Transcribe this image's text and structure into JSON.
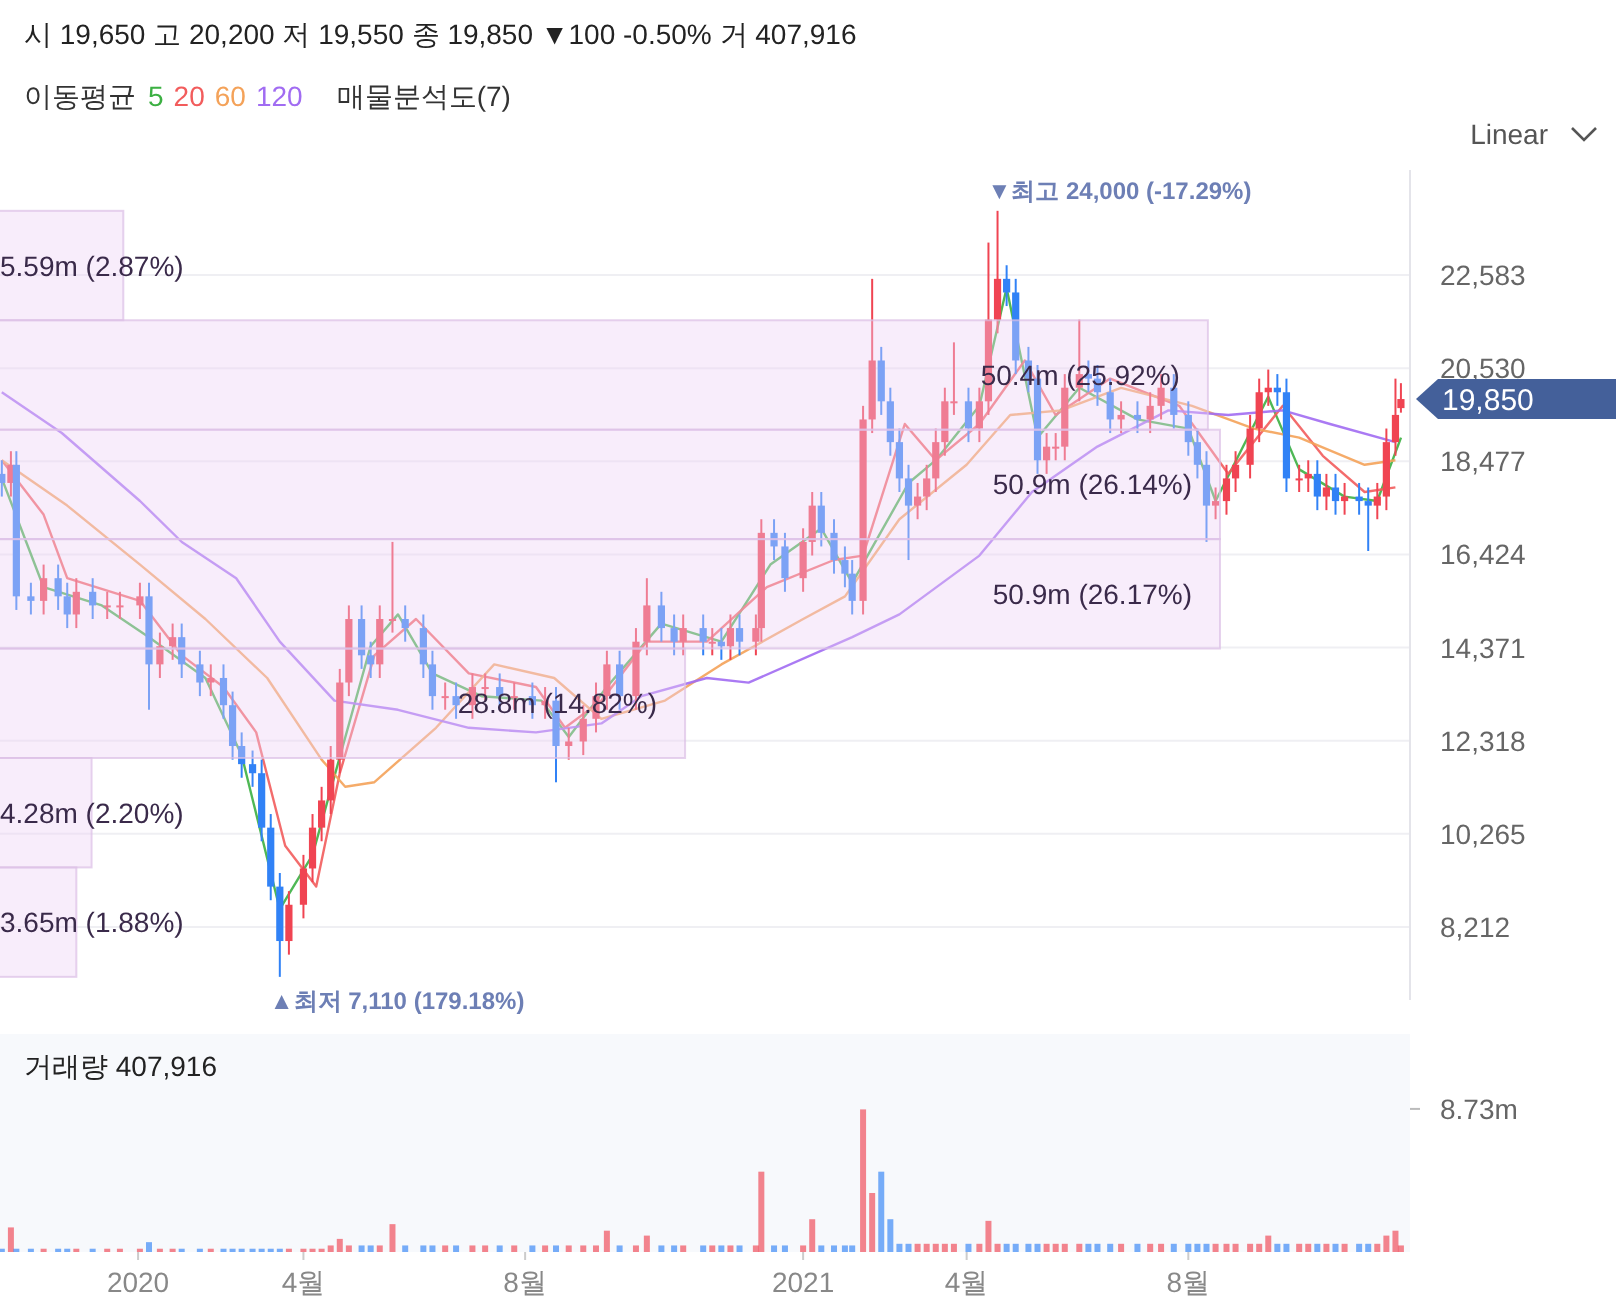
{
  "chart_data": [
    {
      "type": "candlestick",
      "subtitle": "시 19,650 고 20,200 저 19,550 종 19,850 ▼100 -0.50% 거 407,916",
      "legend_title": "이동평균",
      "legend": "top left",
      "grid": "y",
      "tick_labels": "y",
      "xlim": [
        "2019-10-17",
        "2021-12-01"
      ],
      "ylim": [
        6600,
        24900
      ],
      "yticks": [
        {
          "value": 8212,
          "label": "8,212"
        },
        {
          "value": 10265,
          "label": "10,265"
        },
        {
          "value": 12318,
          "label": "12,318"
        },
        {
          "value": 14371,
          "label": "14,371"
        },
        {
          "value": 16424,
          "label": "16,424"
        },
        {
          "value": 18477,
          "label": "18,477"
        },
        {
          "value": 20530,
          "label": "20,530"
        },
        {
          "value": 22583,
          "label": "22,583"
        }
      ],
      "x": [
        "2019-10-18",
        "2019-10-23",
        "2019-10-26",
        "2019-11-03",
        "2019-11-10",
        "2019-11-18",
        "2019-11-23",
        "2019-11-28",
        "2019-12-07",
        "2019-12-15",
        "2019-12-22",
        "2020-01-02",
        "2020-01-07",
        "2020-01-13",
        "2020-01-20",
        "2020-01-25",
        "2020-02-04",
        "2020-02-10",
        "2020-02-17",
        "2020-02-22",
        "2020-02-27",
        "2020-03-04",
        "2020-03-09",
        "2020-03-14",
        "2020-03-19",
        "2020-03-24",
        "2020-04-01",
        "2020-04-06",
        "2020-04-11",
        "2020-04-16",
        "2020-04-21",
        "2020-04-26",
        "2020-05-03",
        "2020-05-08",
        "2020-05-13",
        "2020-05-20",
        "2020-05-27",
        "2020-06-06",
        "2020-06-11",
        "2020-06-18",
        "2020-06-24",
        "2020-07-03",
        "2020-07-10",
        "2020-07-18",
        "2020-07-26",
        "2020-08-05",
        "2020-08-12",
        "2020-08-18",
        "2020-08-25",
        "2020-09-02",
        "2020-09-09",
        "2020-09-15",
        "2020-09-22",
        "2020-10-01",
        "2020-10-07",
        "2020-10-15",
        "2020-10-22",
        "2020-10-27",
        "2020-11-07",
        "2020-11-12",
        "2020-11-17",
        "2020-11-22",
        "2020-11-27",
        "2020-12-06",
        "2020-12-09",
        "2020-12-16",
        "2020-12-22",
        "2021-01-01",
        "2021-01-06",
        "2021-01-11",
        "2021-01-18",
        "2021-01-24",
        "2021-01-28",
        "2021-02-03",
        "2021-02-08",
        "2021-02-13",
        "2021-02-18",
        "2021-02-23",
        "2021-02-28",
        "2021-03-05",
        "2021-03-10",
        "2021-03-15",
        "2021-03-20",
        "2021-03-25",
        "2021-04-02",
        "2021-04-08",
        "2021-04-13",
        "2021-04-18",
        "2021-04-23",
        "2021-04-28",
        "2021-05-05",
        "2021-05-10",
        "2021-05-15",
        "2021-05-20",
        "2021-05-25",
        "2021-06-02",
        "2021-06-07",
        "2021-06-12",
        "2021-06-19",
        "2021-06-25",
        "2021-07-04",
        "2021-07-11",
        "2021-07-17",
        "2021-07-24",
        "2021-08-01",
        "2021-08-06",
        "2021-08-11",
        "2021-08-16",
        "2021-08-22",
        "2021-08-27",
        "2021-09-04",
        "2021-09-09",
        "2021-09-14",
        "2021-09-19",
        "2021-09-24",
        "2021-10-01",
        "2021-10-06",
        "2021-10-11",
        "2021-10-16",
        "2021-10-21",
        "2021-10-26",
        "2021-11-03",
        "2021-11-08",
        "2021-11-13",
        "2021-11-18",
        "2021-11-23",
        "2021-11-26"
      ],
      "ohlc": [
        [
          18200,
          18500,
          17700,
          18000
        ],
        [
          18000,
          18700,
          17700,
          18400
        ],
        [
          18400,
          18700,
          15200,
          15500
        ],
        [
          15500,
          15800,
          15100,
          15400
        ],
        [
          15400,
          16200,
          15100,
          15900
        ],
        [
          15900,
          16200,
          15200,
          15500
        ],
        [
          15500,
          15800,
          14800,
          15100
        ],
        [
          15100,
          15900,
          14800,
          15600
        ],
        [
          15600,
          15900,
          15000,
          15300
        ],
        [
          15300,
          15600,
          15000,
          15300
        ],
        [
          15300,
          15600,
          15000,
          15300
        ],
        [
          15300,
          15800,
          15000,
          15500
        ],
        [
          15500,
          15800,
          13000,
          14000
        ],
        [
          14000,
          14700,
          13700,
          14400
        ],
        [
          14400,
          14900,
          14100,
          14600
        ],
        [
          14600,
          14900,
          13700,
          14000
        ],
        [
          14000,
          14300,
          13300,
          13600
        ],
        [
          13600,
          14000,
          13300,
          13700
        ],
        [
          13700,
          14000,
          12800,
          13100
        ],
        [
          13100,
          13400,
          11900,
          12200
        ],
        [
          12200,
          12500,
          11500,
          11800
        ],
        [
          11800,
          12100,
          11300,
          11600
        ],
        [
          11600,
          11900,
          10100,
          10400
        ],
        [
          10400,
          10700,
          8800,
          9100
        ],
        [
          9100,
          9400,
          7110,
          7900
        ],
        [
          7900,
          9000,
          7600,
          8700
        ],
        [
          8700,
          9800,
          8400,
          9500
        ],
        [
          9500,
          10700,
          9200,
          10400
        ],
        [
          10400,
          11300,
          10100,
          11000
        ],
        [
          11000,
          12200,
          10700,
          11900
        ],
        [
          11900,
          13900,
          11600,
          13600
        ],
        [
          13600,
          15300,
          13300,
          15000
        ],
        [
          15000,
          15300,
          13900,
          14200
        ],
        [
          14200,
          14500,
          13700,
          14000
        ],
        [
          14000,
          15300,
          13700,
          15000
        ],
        [
          15000,
          16700,
          14700,
          15000
        ],
        [
          15000,
          15300,
          14500,
          14800
        ],
        [
          14800,
          15100,
          13700,
          14000
        ],
        [
          14000,
          14300,
          13000,
          13300
        ],
        [
          13300,
          13600,
          13000,
          13300
        ],
        [
          13300,
          13600,
          12800,
          13100
        ],
        [
          13100,
          13800,
          12800,
          13500
        ],
        [
          13500,
          13800,
          13200,
          13500
        ],
        [
          13500,
          13800,
          13000,
          13300
        ],
        [
          13300,
          13600,
          13000,
          13300
        ],
        [
          13300,
          13600,
          12800,
          13100
        ],
        [
          13100,
          13500,
          12800,
          13200
        ],
        [
          13200,
          13500,
          11400,
          12200
        ],
        [
          12200,
          12600,
          11900,
          12300
        ],
        [
          12300,
          13100,
          12000,
          12800
        ],
        [
          12800,
          13600,
          12500,
          13300
        ],
        [
          13300,
          14300,
          13000,
          14000
        ],
        [
          14000,
          14300,
          13000,
          13300
        ],
        [
          13300,
          14800,
          13000,
          14500
        ],
        [
          14500,
          15900,
          14200,
          15300
        ],
        [
          15300,
          15600,
          14500,
          14800
        ],
        [
          14800,
          15100,
          14200,
          14500
        ],
        [
          14500,
          15100,
          14200,
          14800
        ],
        [
          14800,
          15100,
          14200,
          14500
        ],
        [
          14500,
          14800,
          14200,
          14500
        ],
        [
          14500,
          14800,
          14100,
          14400
        ],
        [
          14400,
          15100,
          14100,
          14800
        ],
        [
          14800,
          15100,
          14200,
          14500
        ],
        [
          14500,
          15100,
          14200,
          14800
        ],
        [
          14800,
          17200,
          14500,
          16900
        ],
        [
          16900,
          17200,
          16300,
          16600
        ],
        [
          16600,
          16900,
          15600,
          15900
        ],
        [
          15900,
          17000,
          15600,
          16700
        ],
        [
          16700,
          17800,
          16400,
          17500
        ],
        [
          17500,
          17800,
          16600,
          16900
        ],
        [
          16900,
          17200,
          16000,
          16300
        ],
        [
          16300,
          16600,
          15700,
          16000
        ],
        [
          16000,
          16300,
          15100,
          15400
        ],
        [
          15400,
          19700,
          15100,
          19400
        ],
        [
          19400,
          22500,
          19100,
          20700
        ],
        [
          20700,
          21000,
          19500,
          19800
        ],
        [
          19800,
          20100,
          18600,
          18900
        ],
        [
          18900,
          19200,
          17800,
          18100
        ],
        [
          18100,
          18400,
          16300,
          17500
        ],
        [
          17500,
          18000,
          17200,
          17700
        ],
        [
          17700,
          18400,
          17400,
          18100
        ],
        [
          18100,
          19200,
          17800,
          18900
        ],
        [
          18900,
          20100,
          18600,
          19800
        ],
        [
          19800,
          21100,
          19500,
          19800
        ],
        [
          19800,
          20100,
          18900,
          19200
        ],
        [
          19200,
          20100,
          18900,
          19800
        ],
        [
          19800,
          23300,
          19500,
          21600
        ],
        [
          21600,
          24000,
          21300,
          22500
        ],
        [
          22500,
          22800,
          21900,
          22200
        ],
        [
          22200,
          22500,
          20400,
          20700
        ],
        [
          20700,
          21000,
          20000,
          20300
        ],
        [
          20300,
          20600,
          18200,
          18500
        ],
        [
          18500,
          19100,
          18200,
          18800
        ],
        [
          18800,
          19100,
          18500,
          18800
        ],
        [
          18800,
          20400,
          18500,
          20100
        ],
        [
          20100,
          21600,
          19800,
          20400
        ],
        [
          20400,
          20700,
          20000,
          20300
        ],
        [
          20300,
          20600,
          19700,
          20000
        ],
        [
          20000,
          20300,
          19100,
          19400
        ],
        [
          19400,
          19800,
          19100,
          19500
        ],
        [
          19500,
          19800,
          19100,
          19400
        ],
        [
          19400,
          20000,
          19100,
          19700
        ],
        [
          19700,
          20400,
          19400,
          20100
        ],
        [
          20100,
          20400,
          19200,
          19500
        ],
        [
          19500,
          19800,
          18600,
          18900
        ],
        [
          18900,
          19200,
          18100,
          18400
        ],
        [
          18400,
          18700,
          16700,
          17500
        ],
        [
          17500,
          17900,
          17200,
          17600
        ],
        [
          17600,
          18400,
          17300,
          18100
        ],
        [
          18100,
          18700,
          17800,
          18400
        ],
        [
          18400,
          19500,
          18100,
          19200
        ],
        [
          19200,
          20300,
          18900,
          20000
        ],
        [
          20000,
          20500,
          19700,
          20100
        ],
        [
          20100,
          20400,
          19700,
          20000
        ],
        [
          20000,
          20300,
          17800,
          18100
        ],
        [
          18100,
          18400,
          17800,
          18100
        ],
        [
          18100,
          18500,
          17800,
          18200
        ],
        [
          18200,
          18500,
          17400,
          17700
        ],
        [
          17700,
          18200,
          17400,
          17900
        ],
        [
          17900,
          18200,
          17300,
          17600
        ],
        [
          17600,
          18000,
          17300,
          17700
        ],
        [
          17700,
          18000,
          17300,
          17600
        ],
        [
          17600,
          17900,
          16500,
          17500
        ],
        [
          17500,
          18000,
          17200,
          17700
        ],
        [
          17700,
          19200,
          17400,
          18900
        ],
        [
          18900,
          20300,
          18600,
          19500
        ],
        [
          19650,
          20200,
          19550,
          19850
        ]
      ],
      "colors": [
        "#3182f6",
        "#f04452",
        "#3182f6",
        "#3182f6",
        "#f04452",
        "#3182f6",
        "#3182f6",
        "#f04452",
        "#3182f6",
        "#f04452",
        "#f04452",
        "#f04452",
        "#3182f6",
        "#f04452",
        "#f04452",
        "#3182f6",
        "#3182f6",
        "#f04452",
        "#3182f6",
        "#3182f6",
        "#3182f6",
        "#3182f6",
        "#3182f6",
        "#3182f6",
        "#3182f6",
        "#f04452",
        "#f04452",
        "#f04452",
        "#f04452",
        "#f04452",
        "#f04452",
        "#f04452",
        "#3182f6",
        "#3182f6",
        "#f04452",
        "#f04452",
        "#3182f6",
        "#3182f6",
        "#3182f6",
        "#f04452",
        "#3182f6",
        "#f04452",
        "#f04452",
        "#3182f6",
        "#f04452",
        "#3182f6",
        "#f04452",
        "#3182f6",
        "#f04452",
        "#f04452",
        "#f04452",
        "#f04452",
        "#3182f6",
        "#f04452",
        "#f04452",
        "#3182f6",
        "#3182f6",
        "#f04452",
        "#3182f6",
        "#f04452",
        "#3182f6",
        "#f04452",
        "#3182f6",
        "#f04452",
        "#f04452",
        "#3182f6",
        "#3182f6",
        "#f04452",
        "#f04452",
        "#3182f6",
        "#3182f6",
        "#3182f6",
        "#3182f6",
        "#f04452",
        "#f04452",
        "#3182f6",
        "#3182f6",
        "#3182f6",
        "#3182f6",
        "#f04452",
        "#f04452",
        "#f04452",
        "#f04452",
        "#f04452",
        "#3182f6",
        "#f04452",
        "#f04452",
        "#f04452",
        "#3182f6",
        "#3182f6",
        "#3182f6",
        "#3182f6",
        "#f04452",
        "#f04452",
        "#f04452",
        "#f04452",
        "#3182f6",
        "#3182f6",
        "#3182f6",
        "#f04452",
        "#3182f6",
        "#f04452",
        "#f04452",
        "#3182f6",
        "#3182f6",
        "#3182f6",
        "#3182f6",
        "#f04452",
        "#f04452",
        "#f04452",
        "#f04452",
        "#f04452",
        "#f04452",
        "#3182f6",
        "#3182f6",
        "#f04452",
        "#f04452",
        "#3182f6",
        "#f04452",
        "#3182f6",
        "#f04452",
        "#3182f6",
        "#3182f6",
        "#f04452",
        "#f04452",
        "#f04452",
        "#f04452"
      ],
      "series": [
        {
          "name": "5",
          "type": "line",
          "color": "#3cb043",
          "x": [
            "2019-10-18",
            "2019-11-10",
            "2019-12-12",
            "2020-01-07",
            "2020-02-07",
            "2020-02-27",
            "2020-03-19",
            "2020-04-06",
            "2020-05-08",
            "2020-05-23",
            "2020-06-11",
            "2020-07-08",
            "2020-08-10",
            "2020-08-25",
            "2020-09-15",
            "2020-10-15",
            "2020-11-17",
            "2020-12-14",
            "2021-01-11",
            "2021-01-28",
            "2021-02-28",
            "2021-03-15",
            "2021-04-08",
            "2021-04-23",
            "2021-05-10",
            "2021-06-02",
            "2021-07-04",
            "2021-08-01",
            "2021-08-16",
            "2021-09-14",
            "2021-10-01",
            "2021-10-26",
            "2021-11-13",
            "2021-11-26"
          ],
          "values": [
            18100,
            15700,
            15300,
            14600,
            13700,
            12000,
            8600,
            9800,
            14400,
            15100,
            13800,
            13300,
            13200,
            12400,
            13500,
            14900,
            14500,
            16200,
            17000,
            15800,
            18000,
            18500,
            19700,
            22300,
            19000,
            20100,
            19400,
            19200,
            17600,
            19900,
            18300,
            17700,
            17600,
            19000
          ]
        },
        {
          "name": "20",
          "type": "line",
          "color": "#f25c5c",
          "x": [
            "2019-10-18",
            "2019-11-10",
            "2019-11-23",
            "2020-01-02",
            "2020-01-25",
            "2020-02-17",
            "2020-03-06",
            "2020-03-22",
            "2020-04-08",
            "2020-04-21",
            "2020-05-10",
            "2020-06-02",
            "2020-07-01",
            "2020-08-07",
            "2020-08-23",
            "2020-09-12",
            "2020-10-07",
            "2020-11-09",
            "2020-12-12",
            "2021-01-18",
            "2021-02-03",
            "2021-02-26",
            "2021-03-15",
            "2021-04-08",
            "2021-05-03",
            "2021-05-20",
            "2021-06-19",
            "2021-07-27",
            "2021-08-23",
            "2021-09-22",
            "2021-10-14",
            "2021-11-06",
            "2021-11-23"
          ],
          "values": [
            18500,
            17300,
            15900,
            15400,
            14200,
            13500,
            12500,
            10000,
            9100,
            11600,
            14200,
            15000,
            13800,
            13500,
            12600,
            13200,
            14500,
            14500,
            15700,
            16300,
            16400,
            19300,
            18500,
            19300,
            20700,
            19500,
            20300,
            19700,
            18200,
            19700,
            18600,
            17800,
            17900
          ]
        },
        {
          "name": "60",
          "type": "line",
          "color": "#f4a259",
          "x": [
            "2019-10-18",
            "2019-11-23",
            "2020-01-02",
            "2020-02-07",
            "2020-03-12",
            "2020-04-11",
            "2020-04-24",
            "2020-05-10",
            "2020-06-13",
            "2020-07-15",
            "2020-08-17",
            "2020-09-12",
            "2020-10-17",
            "2020-11-17",
            "2021-01-01",
            "2021-01-24",
            "2021-02-23",
            "2021-04-01",
            "2021-04-25",
            "2021-05-23",
            "2021-06-25",
            "2021-08-03",
            "2021-09-06",
            "2021-10-01",
            "2021-11-06",
            "2021-11-23"
          ],
          "values": [
            18500,
            17500,
            16200,
            15000,
            13700,
            11900,
            11300,
            11400,
            12600,
            14000,
            13700,
            12800,
            13200,
            14000,
            15000,
            15500,
            17200,
            18400,
            19500,
            19600,
            20100,
            19700,
            19200,
            19000,
            18400,
            18500
          ]
        },
        {
          "name": "120",
          "type": "line",
          "color": "#a16cf2",
          "x": [
            "2019-10-18",
            "2019-11-20",
            "2020-01-02",
            "2020-01-25",
            "2020-02-24",
            "2020-03-19",
            "2020-04-18",
            "2020-05-23",
            "2020-07-01",
            "2020-08-07",
            "2020-09-12",
            "2020-10-04",
            "2020-11-09",
            "2020-12-02",
            "2021-01-28",
            "2021-02-23",
            "2021-04-08",
            "2021-05-07",
            "2021-06-12",
            "2021-07-21",
            "2021-08-23",
            "2021-09-22",
            "2021-10-18",
            "2021-11-23"
          ],
          "values": [
            20000,
            19100,
            17600,
            16700,
            15900,
            14500,
            13200,
            13000,
            12600,
            12500,
            12700,
            13300,
            13700,
            13600,
            14600,
            15100,
            16400,
            17800,
            18800,
            19600,
            19500,
            19600,
            19300,
            18900
          ]
        }
      ],
      "annotations": [
        {
          "text": "▼최고 24,000 (-17.29%)",
          "x": "2021-04-18",
          "y": 24000
        },
        {
          "text": "▲최저 7,110 (179.18%)",
          "x": "2020-03-19",
          "y": 7110
        },
        {
          "text": "19,850",
          "x": "2021-11-26",
          "y": 19850
        },
        "Linear"
      ]
    },
    {
      "type": "bar",
      "orientation": "horizontal",
      "title": "매물분석도(7)",
      "categories": [
        null,
        null,
        null,
        null,
        null,
        null,
        null
      ],
      "values": [
        5590000,
        50400000,
        50900000,
        50900000,
        28800000,
        4280000,
        3650000
      ],
      "value_labels": [
        "5.59m (2.87%)",
        "50.4m (25.92%)",
        "50.9m (26.14%)",
        "50.9m (26.17%)",
        "28.8m (14.82%)",
        "4.28m (2.20%)",
        "3.65m (1.88%)"
      ],
      "color": "#eed2f6"
    },
    {
      "type": "bar",
      "title": "거래량 407,916",
      "xlim": [
        "2019-10-17",
        "2021-12-01"
      ],
      "ylim": [
        0,
        13300000
      ],
      "yticks": [
        {
          "value": 8730000,
          "label": "8.73m"
        }
      ],
      "xticks": [
        {
          "value": "2020-01-01",
          "label": "2020"
        },
        {
          "value": "2020-04-01",
          "label": "4월"
        },
        {
          "value": "2020-08-01",
          "label": "8월"
        },
        {
          "value": "2021-01-01",
          "label": "2021"
        },
        {
          "value": "2021-04-01",
          "label": "4월"
        },
        {
          "value": "2021-08-01",
          "label": "8월"
        }
      ],
      "x": [
        "2019-10-18",
        "2019-10-23",
        "2019-10-26",
        "2019-11-03",
        "2019-11-10",
        "2019-11-18",
        "2019-11-23",
        "2019-11-28",
        "2019-12-07",
        "2019-12-15",
        "2019-12-22",
        "2020-01-02",
        "2020-01-07",
        "2020-01-13",
        "2020-01-20",
        "2020-01-25",
        "2020-02-04",
        "2020-02-10",
        "2020-02-17",
        "2020-02-22",
        "2020-02-27",
        "2020-03-04",
        "2020-03-09",
        "2020-03-14",
        "2020-03-19",
        "2020-03-24",
        "2020-04-01",
        "2020-04-06",
        "2020-04-11",
        "2020-04-16",
        "2020-04-21",
        "2020-04-26",
        "2020-05-03",
        "2020-05-08",
        "2020-05-13",
        "2020-05-20",
        "2020-05-27",
        "2020-06-06",
        "2020-06-11",
        "2020-06-18",
        "2020-06-24",
        "2020-07-03",
        "2020-07-10",
        "2020-07-18",
        "2020-07-26",
        "2020-08-05",
        "2020-08-12",
        "2020-08-18",
        "2020-08-25",
        "2020-09-02",
        "2020-09-09",
        "2020-09-15",
        "2020-09-22",
        "2020-10-01",
        "2020-10-07",
        "2020-10-15",
        "2020-10-22",
        "2020-10-27",
        "2020-11-07",
        "2020-11-12",
        "2020-11-17",
        "2020-11-22",
        "2020-11-27",
        "2020-12-06",
        "2020-12-09",
        "2020-12-16",
        "2020-12-22",
        "2021-01-01",
        "2021-01-06",
        "2021-01-11",
        "2021-01-18",
        "2021-01-24",
        "2021-01-28",
        "2021-02-03",
        "2021-02-08",
        "2021-02-13",
        "2021-02-18",
        "2021-02-23",
        "2021-02-28",
        "2021-03-05",
        "2021-03-10",
        "2021-03-15",
        "2021-03-20",
        "2021-03-25",
        "2021-04-02",
        "2021-04-08",
        "2021-04-13",
        "2021-04-18",
        "2021-04-23",
        "2021-04-28",
        "2021-05-05",
        "2021-05-10",
        "2021-05-15",
        "2021-05-20",
        "2021-05-25",
        "2021-06-02",
        "2021-06-07",
        "2021-06-12",
        "2021-06-19",
        "2021-06-25",
        "2021-07-04",
        "2021-07-11",
        "2021-07-17",
        "2021-07-24",
        "2021-08-01",
        "2021-08-06",
        "2021-08-11",
        "2021-08-16",
        "2021-08-22",
        "2021-08-27",
        "2021-09-04",
        "2021-09-09",
        "2021-09-14",
        "2021-09-19",
        "2021-09-24",
        "2021-10-01",
        "2021-10-06",
        "2021-10-11",
        "2021-10-16",
        "2021-10-21",
        "2021-10-26",
        "2021-11-03",
        "2021-11-08",
        "2021-11-13",
        "2021-11-18",
        "2021-11-23",
        "2021-11-26"
      ],
      "values": [
        200000,
        1500000,
        200000,
        200000,
        200000,
        200000,
        200000,
        200000,
        200000,
        200000,
        200000,
        200000,
        600000,
        200000,
        200000,
        200000,
        200000,
        200000,
        200000,
        200000,
        200000,
        200000,
        200000,
        200000,
        200000,
        200000,
        200000,
        200000,
        200000,
        400000,
        800000,
        400000,
        400000,
        400000,
        400000,
        1700000,
        400000,
        400000,
        400000,
        400000,
        400000,
        400000,
        400000,
        400000,
        400000,
        400000,
        400000,
        400000,
        400000,
        400000,
        400000,
        1300000,
        400000,
        400000,
        1000000,
        400000,
        400000,
        400000,
        400000,
        400000,
        400000,
        400000,
        400000,
        400000,
        4900000,
        400000,
        400000,
        400000,
        2000000,
        400000,
        400000,
        400000,
        400000,
        8700000,
        3600000,
        4900000,
        2000000,
        500000,
        500000,
        500000,
        500000,
        500000,
        500000,
        500000,
        500000,
        500000,
        1900000,
        500000,
        500000,
        500000,
        500000,
        500000,
        500000,
        500000,
        500000,
        500000,
        500000,
        500000,
        500000,
        500000,
        500000,
        500000,
        500000,
        500000,
        500000,
        500000,
        500000,
        500000,
        500000,
        500000,
        500000,
        500000,
        1000000,
        500000,
        500000,
        500000,
        500000,
        500000,
        500000,
        500000,
        500000,
        500000,
        500000,
        500000,
        1000000,
        1300000,
        400000
      ],
      "colors": [
        "#3182f6",
        "#f04452",
        "#3182f6",
        "#3182f6",
        "#f04452",
        "#3182f6",
        "#3182f6",
        "#f04452",
        "#3182f6",
        "#f04452",
        "#f04452",
        "#f04452",
        "#3182f6",
        "#f04452",
        "#f04452",
        "#3182f6",
        "#3182f6",
        "#f04452",
        "#3182f6",
        "#3182f6",
        "#3182f6",
        "#3182f6",
        "#3182f6",
        "#3182f6",
        "#3182f6",
        "#f04452",
        "#f04452",
        "#f04452",
        "#f04452",
        "#f04452",
        "#f04452",
        "#f04452",
        "#3182f6",
        "#3182f6",
        "#f04452",
        "#f04452",
        "#3182f6",
        "#3182f6",
        "#3182f6",
        "#f04452",
        "#3182f6",
        "#f04452",
        "#f04452",
        "#3182f6",
        "#f04452",
        "#3182f6",
        "#f04452",
        "#3182f6",
        "#f04452",
        "#f04452",
        "#f04452",
        "#f04452",
        "#3182f6",
        "#f04452",
        "#f04452",
        "#3182f6",
        "#3182f6",
        "#f04452",
        "#3182f6",
        "#f04452",
        "#3182f6",
        "#f04452",
        "#3182f6",
        "#f04452",
        "#f04452",
        "#3182f6",
        "#3182f6",
        "#f04452",
        "#f04452",
        "#3182f6",
        "#3182f6",
        "#3182f6",
        "#3182f6",
        "#f04452",
        "#f04452",
        "#3182f6",
        "#3182f6",
        "#3182f6",
        "#3182f6",
        "#f04452",
        "#f04452",
        "#f04452",
        "#f04452",
        "#f04452",
        "#3182f6",
        "#f04452",
        "#f04452",
        "#f04452",
        "#3182f6",
        "#3182f6",
        "#3182f6",
        "#3182f6",
        "#f04452",
        "#f04452",
        "#f04452",
        "#f04452",
        "#3182f6",
        "#3182f6",
        "#3182f6",
        "#f04452",
        "#3182f6",
        "#f04452",
        "#f04452",
        "#3182f6",
        "#3182f6",
        "#3182f6",
        "#3182f6",
        "#f04452",
        "#f04452",
        "#f04452",
        "#f04452",
        "#f04452",
        "#f04452",
        "#3182f6",
        "#3182f6",
        "#f04452",
        "#f04452",
        "#3182f6",
        "#f04452",
        "#3182f6",
        "#f04452",
        "#3182f6",
        "#3182f6",
        "#f04452",
        "#f04452",
        "#f04452",
        "#f04452"
      ]
    }
  ]
}
